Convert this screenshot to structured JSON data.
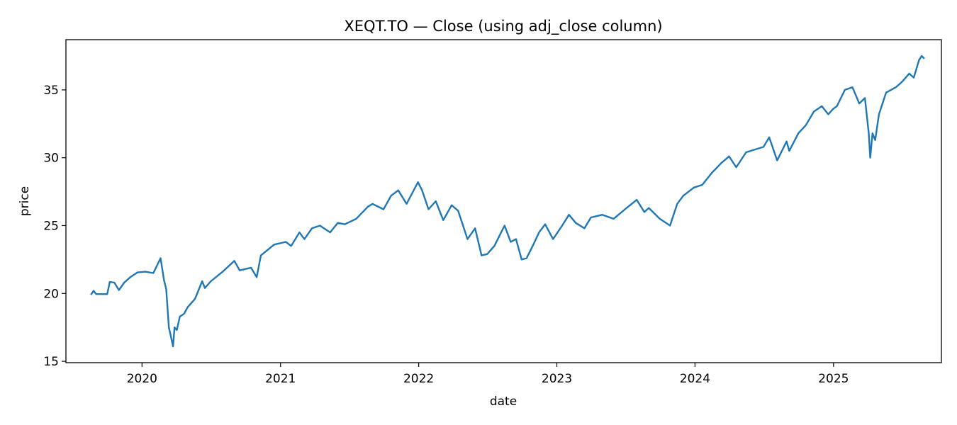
{
  "chart_data": {
    "type": "line",
    "title": "XEQT.TO — Close (using adj_close column)",
    "xlabel": "date",
    "ylabel": "price",
    "xlim": [
      "2019-06-14",
      "2025-10-13"
    ],
    "ylim": [
      14.9,
      38.7
    ],
    "xticks": [
      {
        "label": "2020",
        "date": "2020-01-01"
      },
      {
        "label": "2021",
        "date": "2021-01-01"
      },
      {
        "label": "2022",
        "date": "2022-01-01"
      },
      {
        "label": "2023",
        "date": "2023-01-01"
      },
      {
        "label": "2024",
        "date": "2024-01-01"
      },
      {
        "label": "2025",
        "date": "2025-01-01"
      }
    ],
    "yticks": [
      15,
      20,
      25,
      30,
      35
    ],
    "grid": false,
    "series": [
      {
        "color": "#1f77b4",
        "points": [
          [
            "2019-08-19",
            19.9
          ],
          [
            "2019-08-26",
            20.2
          ],
          [
            "2019-09-02",
            19.95
          ],
          [
            "2019-09-20",
            19.95
          ],
          [
            "2019-10-01",
            19.95
          ],
          [
            "2019-10-08",
            20.85
          ],
          [
            "2019-10-20",
            20.8
          ],
          [
            "2019-11-01",
            20.25
          ],
          [
            "2019-11-15",
            20.8
          ],
          [
            "2019-12-01",
            21.2
          ],
          [
            "2019-12-20",
            21.55
          ],
          [
            "2020-01-10",
            21.6
          ],
          [
            "2020-01-31",
            21.5
          ],
          [
            "2020-02-19",
            22.6
          ],
          [
            "2020-02-28",
            21.0
          ],
          [
            "2020-03-05",
            20.3
          ],
          [
            "2020-03-12",
            17.5
          ],
          [
            "2020-03-16",
            17.0
          ],
          [
            "2020-03-23",
            16.1
          ],
          [
            "2020-03-27",
            17.5
          ],
          [
            "2020-04-02",
            17.3
          ],
          [
            "2020-04-10",
            18.3
          ],
          [
            "2020-04-21",
            18.5
          ],
          [
            "2020-05-01",
            19.0
          ],
          [
            "2020-05-20",
            19.6
          ],
          [
            "2020-06-08",
            20.9
          ],
          [
            "2020-06-15",
            20.4
          ],
          [
            "2020-07-01",
            20.9
          ],
          [
            "2020-08-01",
            21.6
          ],
          [
            "2020-09-01",
            22.4
          ],
          [
            "2020-09-15",
            21.7
          ],
          [
            "2020-10-15",
            21.9
          ],
          [
            "2020-10-30",
            21.2
          ],
          [
            "2020-11-10",
            22.8
          ],
          [
            "2020-12-15",
            23.6
          ],
          [
            "2021-01-15",
            23.8
          ],
          [
            "2021-01-29",
            23.5
          ],
          [
            "2021-02-20",
            24.5
          ],
          [
            "2021-03-05",
            24.0
          ],
          [
            "2021-03-25",
            24.8
          ],
          [
            "2021-04-15",
            25.0
          ],
          [
            "2021-05-12",
            24.5
          ],
          [
            "2021-06-01",
            25.2
          ],
          [
            "2021-06-20",
            25.1
          ],
          [
            "2021-07-20",
            25.5
          ],
          [
            "2021-08-20",
            26.4
          ],
          [
            "2021-09-01",
            26.6
          ],
          [
            "2021-09-30",
            26.2
          ],
          [
            "2021-10-20",
            27.2
          ],
          [
            "2021-11-08",
            27.6
          ],
          [
            "2021-11-30",
            26.6
          ],
          [
            "2021-12-15",
            27.4
          ],
          [
            "2021-12-30",
            28.2
          ],
          [
            "2022-01-10",
            27.6
          ],
          [
            "2022-01-27",
            26.2
          ],
          [
            "2022-02-15",
            26.8
          ],
          [
            "2022-03-07",
            25.4
          ],
          [
            "2022-03-29",
            26.5
          ],
          [
            "2022-04-15",
            26.1
          ],
          [
            "2022-05-10",
            24.0
          ],
          [
            "2022-05-30",
            24.8
          ],
          [
            "2022-06-16",
            22.8
          ],
          [
            "2022-07-01",
            22.9
          ],
          [
            "2022-07-20",
            23.5
          ],
          [
            "2022-08-16",
            25.0
          ],
          [
            "2022-09-01",
            23.8
          ],
          [
            "2022-09-15",
            24.0
          ],
          [
            "2022-09-30",
            22.5
          ],
          [
            "2022-10-13",
            22.6
          ],
          [
            "2022-10-31",
            23.6
          ],
          [
            "2022-11-15",
            24.5
          ],
          [
            "2022-12-01",
            25.1
          ],
          [
            "2022-12-22",
            24.0
          ],
          [
            "2023-01-15",
            25.0
          ],
          [
            "2023-02-02",
            25.8
          ],
          [
            "2023-02-20",
            25.2
          ],
          [
            "2023-03-15",
            24.8
          ],
          [
            "2023-04-01",
            25.6
          ],
          [
            "2023-05-01",
            25.8
          ],
          [
            "2023-05-31",
            25.5
          ],
          [
            "2023-06-30",
            26.2
          ],
          [
            "2023-07-31",
            26.9
          ],
          [
            "2023-08-20",
            26.0
          ],
          [
            "2023-09-01",
            26.3
          ],
          [
            "2023-09-30",
            25.5
          ],
          [
            "2023-10-27",
            25.0
          ],
          [
            "2023-11-15",
            26.6
          ],
          [
            "2023-12-01",
            27.2
          ],
          [
            "2023-12-29",
            27.8
          ],
          [
            "2024-01-20",
            28.0
          ],
          [
            "2024-02-15",
            28.9
          ],
          [
            "2024-03-10",
            29.6
          ],
          [
            "2024-03-31",
            30.1
          ],
          [
            "2024-04-19",
            29.3
          ],
          [
            "2024-05-15",
            30.4
          ],
          [
            "2024-06-30",
            30.8
          ],
          [
            "2024-07-15",
            31.5
          ],
          [
            "2024-08-05",
            29.8
          ],
          [
            "2024-08-30",
            31.2
          ],
          [
            "2024-09-06",
            30.5
          ],
          [
            "2024-09-30",
            31.8
          ],
          [
            "2024-10-20",
            32.4
          ],
          [
            "2024-11-10",
            33.4
          ],
          [
            "2024-12-01",
            33.8
          ],
          [
            "2024-12-18",
            33.2
          ],
          [
            "2024-12-31",
            33.6
          ],
          [
            "2025-01-10",
            33.8
          ],
          [
            "2025-01-31",
            35.0
          ],
          [
            "2025-02-20",
            35.2
          ],
          [
            "2025-03-10",
            34.0
          ],
          [
            "2025-03-25",
            34.4
          ],
          [
            "2025-04-04",
            31.8
          ],
          [
            "2025-04-08",
            30.0
          ],
          [
            "2025-04-14",
            31.8
          ],
          [
            "2025-04-21",
            31.3
          ],
          [
            "2025-05-01",
            33.2
          ],
          [
            "2025-05-20",
            34.8
          ],
          [
            "2025-06-15",
            35.2
          ],
          [
            "2025-07-01",
            35.6
          ],
          [
            "2025-07-20",
            36.2
          ],
          [
            "2025-08-01",
            35.9
          ],
          [
            "2025-08-15",
            37.2
          ],
          [
            "2025-08-22",
            37.5
          ],
          [
            "2025-08-29",
            37.3
          ]
        ]
      }
    ]
  }
}
